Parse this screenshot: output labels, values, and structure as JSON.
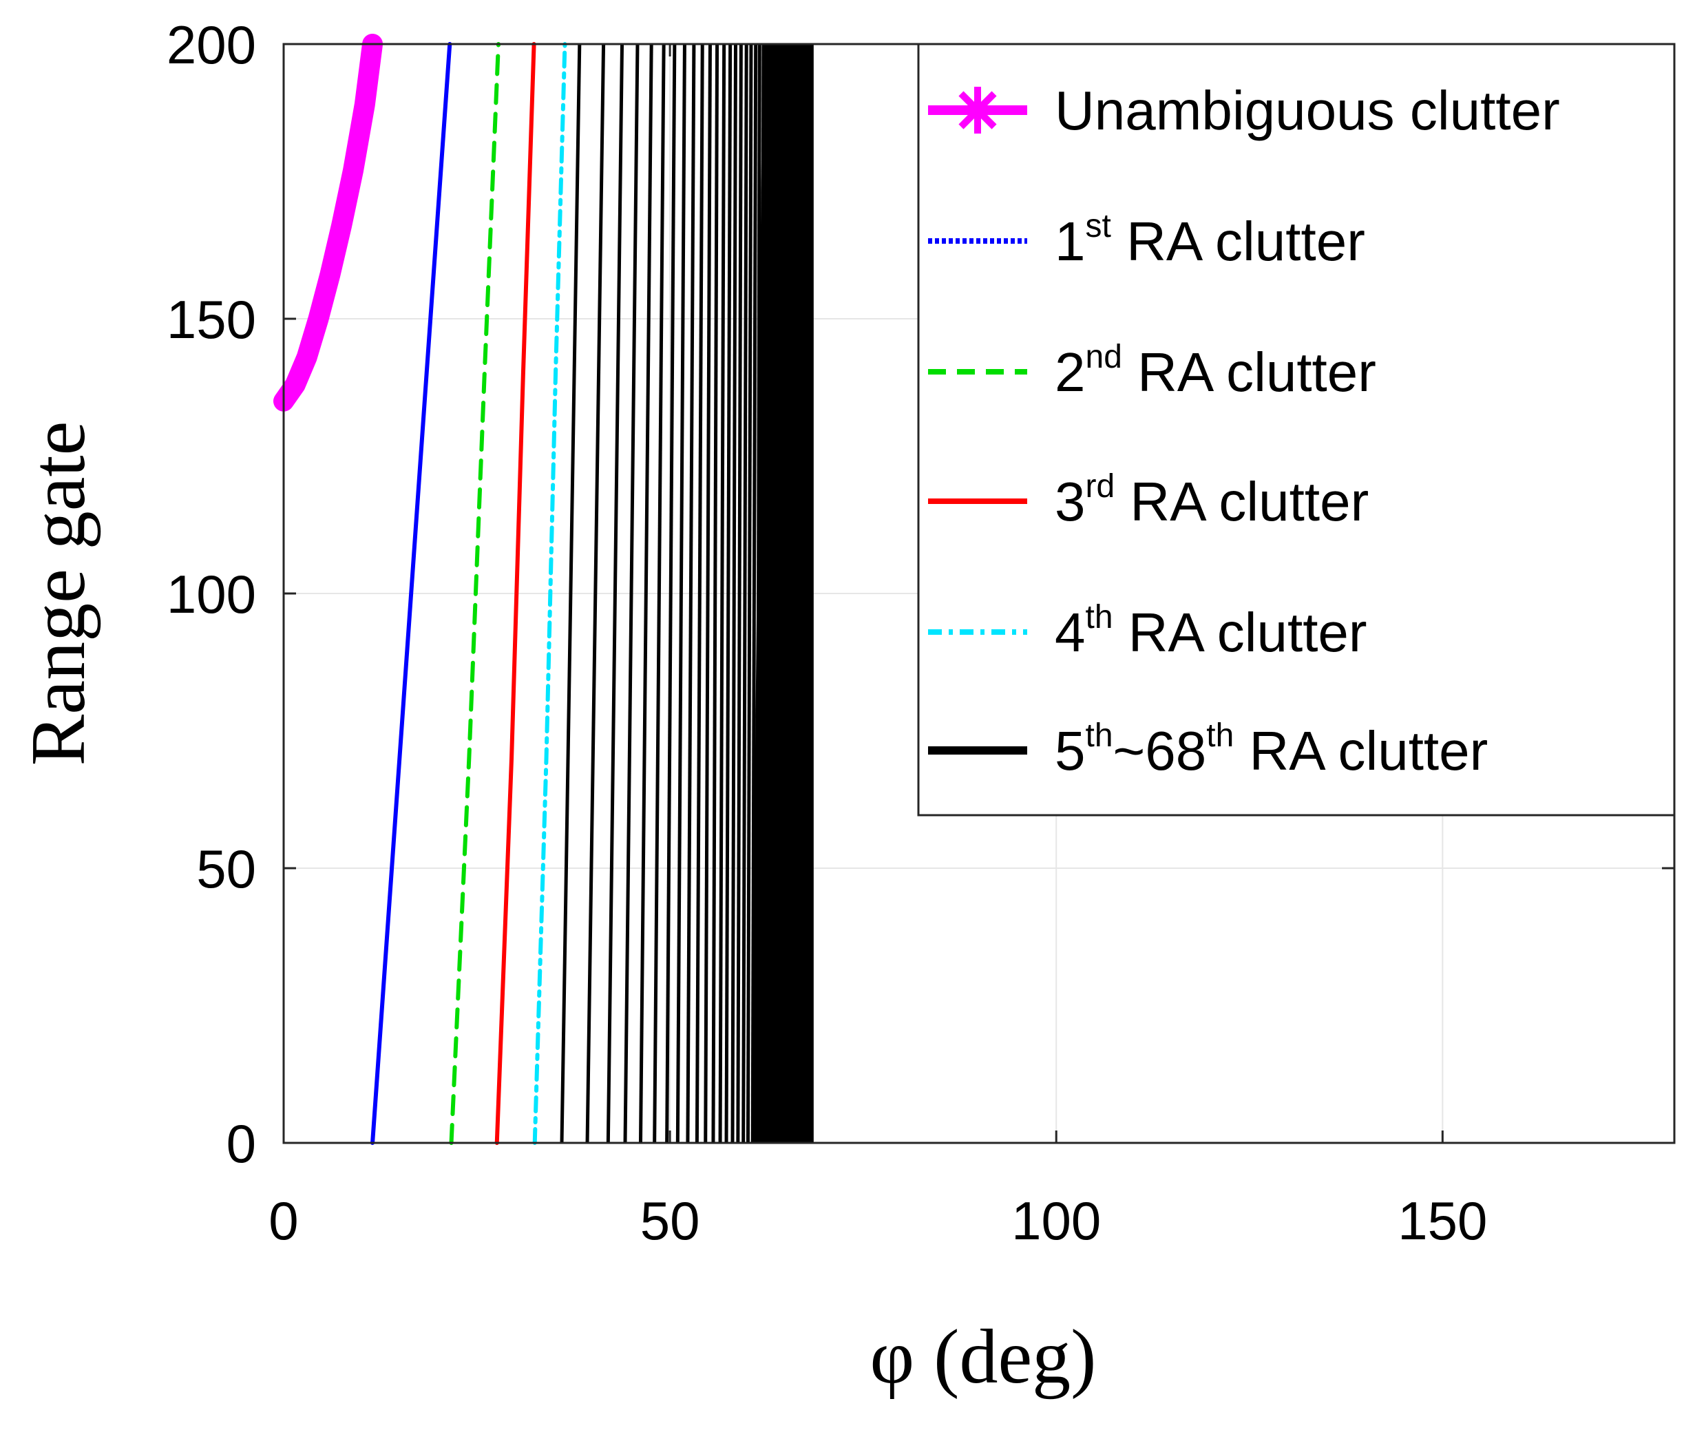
{
  "chart_data": {
    "type": "line",
    "title": "",
    "xlabel": "φ (deg)",
    "ylabel": "Range gate",
    "xlim": [
      0,
      180
    ],
    "ylim": [
      0,
      200
    ],
    "xticks": [
      0,
      50,
      100,
      150
    ],
    "yticks": [
      0,
      50,
      100,
      150,
      200
    ],
    "grid": true,
    "legend_position": "top-right",
    "series": [
      {
        "name": "Unambiguous clutter",
        "color": "#ff00ff",
        "style": "thick-marker",
        "x": [
          0,
          1.5,
          3,
          4.5,
          6,
          7.5,
          9,
          10.5,
          11.5
        ],
        "y": [
          135,
          138,
          143,
          150,
          158,
          167,
          177,
          189,
          200
        ]
      },
      {
        "name": "1st RA clutter",
        "legend_parts": [
          "1",
          "st",
          " RA clutter"
        ],
        "color": "#0000ff",
        "style": "solid",
        "x": [
          11.5,
          15,
          18.5,
          21.5
        ],
        "y": [
          0,
          70,
          140,
          200
        ]
      },
      {
        "name": "2nd RA clutter",
        "legend_parts": [
          "2",
          "nd",
          " RA clutter"
        ],
        "color": "#00dd00",
        "style": "dashed",
        "x": [
          21.7,
          24,
          26,
          27.8
        ],
        "y": [
          0,
          70,
          140,
          200
        ]
      },
      {
        "name": "3rd RA clutter",
        "legend_parts": [
          "3",
          "rd",
          " RA clutter"
        ],
        "color": "#ff0000",
        "style": "solid",
        "x": [
          27.6,
          29.5,
          31,
          32.4
        ],
        "y": [
          0,
          70,
          140,
          200
        ]
      },
      {
        "name": "4th RA clutter",
        "legend_parts": [
          "4",
          "th",
          " RA clutter"
        ],
        "color": "#00e5ff",
        "style": "dashdot",
        "x": [
          32.5,
          34,
          35.2,
          36.4
        ],
        "y": [
          0,
          70,
          140,
          200
        ]
      },
      {
        "name": "5th~68th RA clutter",
        "legend_parts": [
          "5",
          "th",
          "~68",
          "th",
          " RA clutter"
        ],
        "color": "#000000",
        "style": "solid",
        "x_start": [
          36,
          39.3,
          42,
          44.2,
          46.2,
          48,
          49.6,
          51,
          52.3,
          53.5,
          54.6,
          55.6,
          56.5,
          57.3,
          58.1,
          58.8,
          59.5,
          60.1,
          60.7,
          61.3,
          61.8,
          62.3,
          62.8,
          63.3,
          63.7,
          64.1,
          64.5,
          64.9,
          65.3,
          65.7,
          66,
          66.3,
          66.6,
          66.9,
          67.2,
          67.5,
          67.8,
          68
        ],
        "x_end": [
          38.3,
          41.4,
          43.8,
          45.8,
          47.6,
          49.2,
          50.6,
          51.9,
          53.1,
          54.2,
          55.2,
          56.1,
          57,
          57.8,
          58.5,
          59.2,
          59.9,
          60.5,
          61.1,
          61.6,
          62.1,
          62.6,
          63.1,
          63.5,
          63.9,
          64.3,
          64.7,
          65.1,
          65.5,
          65.8,
          66.1,
          66.4,
          66.7,
          67,
          67.3,
          67.6,
          67.9,
          68.1
        ],
        "y_range": [
          0,
          200
        ]
      }
    ]
  }
}
